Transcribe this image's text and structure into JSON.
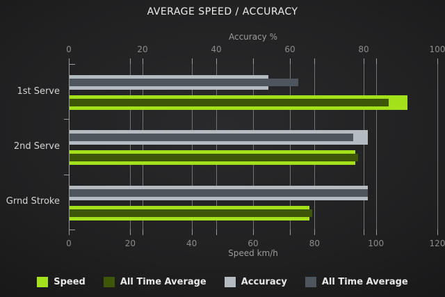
{
  "title": "AVERAGE SPEED / ACCURACY",
  "chart_data": {
    "type": "bar",
    "orientation": "horizontal",
    "title": "AVERAGE SPEED / ACCURACY",
    "categories": [
      "1st Serve",
      "2nd Serve",
      "Grnd Stroke"
    ],
    "axes": {
      "top": {
        "label": "Accuracy %",
        "range": [
          0,
          100
        ],
        "ticks": [
          0,
          20,
          40,
          60,
          80,
          100
        ]
      },
      "bottom": {
        "label": "Speed km/h",
        "range": [
          0,
          120
        ],
        "ticks": [
          0,
          20,
          40,
          60,
          80,
          100,
          120
        ]
      }
    },
    "grid": "on",
    "series": [
      {
        "name": "Accuracy",
        "axis": "top",
        "role": "outer",
        "color": "#b4bbc1",
        "values": [
          54,
          81,
          81
        ]
      },
      {
        "name": "All Time Average",
        "axis": "top",
        "role": "inner-overlay",
        "color": "#4e555c",
        "values": [
          62,
          77,
          81
        ]
      },
      {
        "name": "Speed",
        "axis": "bottom",
        "role": "outer",
        "color": "#a3e11b",
        "values": [
          110,
          93,
          78
        ]
      },
      {
        "name": "All Time Average",
        "axis": "bottom",
        "role": "inner-overlay",
        "color": "#3d5608",
        "values": [
          104,
          94,
          79
        ]
      }
    ],
    "legend": {
      "position": "bottom-center",
      "items": [
        {
          "label": "Speed",
          "color": "#a3e11b"
        },
        {
          "label": "All Time Average",
          "color": "#3d5608"
        },
        {
          "label": "Accuracy",
          "color": "#b4bbc1"
        },
        {
          "label": "All Time Average",
          "color": "#4e555c"
        }
      ]
    }
  },
  "colors": {
    "background_center": "#2a2a2c",
    "background_edge": "#151516",
    "gridline": "#747474",
    "axis": "#9c9c9c",
    "tick_label": "#8d8d8d",
    "category_label": "#d4d4d4",
    "title_text": "#eeeeee"
  }
}
